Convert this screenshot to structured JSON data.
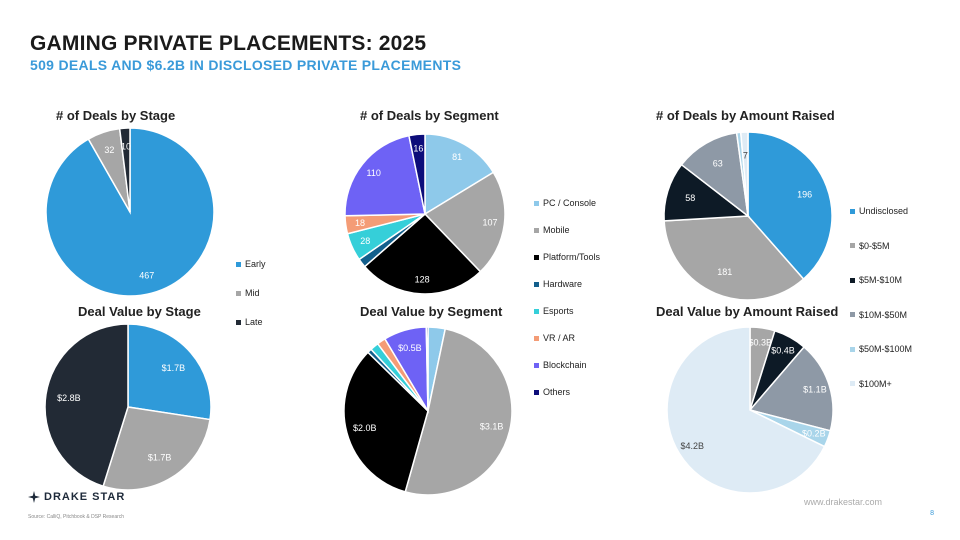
{
  "header": {
    "title": "GAMING PRIVATE PLACEMENTS: 2025",
    "subtitle": "509 DEALS AND $6.2B IN DISCLOSED PRIVATE PLACEMENTS"
  },
  "legends": {
    "stage": [
      {
        "label": "Early",
        "color": "#2f9ad9"
      },
      {
        "label": "Mid",
        "color": "#a6a6a6"
      },
      {
        "label": "Late",
        "color": "#222a35"
      }
    ],
    "segment": [
      {
        "label": "PC / Console",
        "color": "#8ec9ea"
      },
      {
        "label": "Mobile",
        "color": "#a6a6a6"
      },
      {
        "label": "Platform/Tools",
        "color": "#000000"
      },
      {
        "label": "Hardware",
        "color": "#135f8c"
      },
      {
        "label": "Esports",
        "color": "#35cfd9"
      },
      {
        "label": "VR / AR",
        "color": "#f49c76"
      },
      {
        "label": "Blockchain",
        "color": "#6e62f5"
      },
      {
        "label": "Others",
        "color": "#0d0d7a"
      }
    ],
    "amount": [
      {
        "label": "Undisclosed",
        "color": "#2f9ad9"
      },
      {
        "label": "$0-$5M",
        "color": "#a6a6a6"
      },
      {
        "label": "$5M-$10M",
        "color": "#0d1a26"
      },
      {
        "label": "$10M-$50M",
        "color": "#8e99a6"
      },
      {
        "label": "$50M-$100M",
        "color": "#a9d5ea"
      },
      {
        "label": "$100M+",
        "color": "#deebf5"
      }
    ]
  },
  "chart_data": [
    {
      "type": "pie",
      "title": "# of Deals by Stage",
      "slices": [
        {
          "label": "Early",
          "value": 467,
          "display": "467",
          "color": "#2f9ad9"
        },
        {
          "label": "Mid",
          "value": 32,
          "display": "32",
          "color": "#a6a6a6"
        },
        {
          "label": "Late",
          "value": 10,
          "display": "10",
          "color": "#222a35"
        }
      ]
    },
    {
      "type": "pie",
      "title": "# of Deals by Segment",
      "slices": [
        {
          "label": "PC / Console",
          "value": 81,
          "display": "81",
          "color": "#8ec9ea"
        },
        {
          "label": "Mobile",
          "value": 107,
          "display": "107",
          "color": "#a6a6a6"
        },
        {
          "label": "Platform/Tools",
          "value": 128,
          "display": "128",
          "color": "#000000"
        },
        {
          "label": "Hardware",
          "value": 9,
          "display": "",
          "color": "#135f8c"
        },
        {
          "label": "Esports",
          "value": 28,
          "display": "28",
          "color": "#35cfd9"
        },
        {
          "label": "VR / AR",
          "value": 18,
          "display": "18",
          "color": "#f49c76"
        },
        {
          "label": "Blockchain",
          "value": 110,
          "display": "110",
          "color": "#6e62f5"
        },
        {
          "label": "Others",
          "value": 16,
          "display": "16",
          "color": "#0d0d7a"
        }
      ]
    },
    {
      "type": "pie",
      "title": "# of Deals by Amount Raised",
      "slices": [
        {
          "label": "Undisclosed",
          "value": 196,
          "display": "196",
          "color": "#2f9ad9"
        },
        {
          "label": "$0-$5M",
          "value": 181,
          "display": "181",
          "color": "#a6a6a6"
        },
        {
          "label": "$5M-$10M",
          "value": 58,
          "display": "58",
          "color": "#0d1a26"
        },
        {
          "label": "$10M-$50M",
          "value": 63,
          "display": "63",
          "color": "#8e99a6"
        },
        {
          "label": "$50M-$100M",
          "value": 4,
          "display": "",
          "color": "#a9d5ea"
        },
        {
          "label": "$100M+",
          "value": 7,
          "display": "7",
          "color": "#deebf5"
        }
      ]
    },
    {
      "type": "pie",
      "title": "Deal Value by Stage",
      "slices": [
        {
          "label": "Early",
          "value": 1.7,
          "display": "$1.7B",
          "color": "#2f9ad9"
        },
        {
          "label": "Mid",
          "value": 1.7,
          "display": "$1.7B",
          "color": "#a6a6a6"
        },
        {
          "label": "Late",
          "value": 2.8,
          "display": "$2.8B",
          "color": "#222a35"
        }
      ]
    },
    {
      "type": "pie",
      "title": "Deal Value by Segment",
      "slices": [
        {
          "label": "PC / Console",
          "value": 0.2,
          "display": "",
          "color": "#8ec9ea"
        },
        {
          "label": "Mobile",
          "value": 3.1,
          "display": "$3.1B",
          "color": "#a6a6a6"
        },
        {
          "label": "Platform/Tools",
          "value": 2.0,
          "display": "$2.0B",
          "color": "#000000"
        },
        {
          "label": "Hardware",
          "value": 0.05,
          "display": "",
          "color": "#135f8c"
        },
        {
          "label": "Esports",
          "value": 0.1,
          "display": "",
          "color": "#35cfd9"
        },
        {
          "label": "VR / AR",
          "value": 0.1,
          "display": "",
          "color": "#f49c76"
        },
        {
          "label": "Blockchain",
          "value": 0.5,
          "display": "$0.5B",
          "color": "#6e62f5"
        },
        {
          "label": "Others",
          "value": 0.02,
          "display": "",
          "color": "#0d0d7a"
        }
      ]
    },
    {
      "type": "pie",
      "title": "Deal Value by Amount Raised",
      "slices": [
        {
          "label": "$0-$5M",
          "value": 0.3,
          "display": "$0.3B",
          "color": "#a6a6a6"
        },
        {
          "label": "$5M-$10M",
          "value": 0.4,
          "display": "$0.4B",
          "color": "#0d1a26"
        },
        {
          "label": "$10M-$50M",
          "value": 1.1,
          "display": "$1.1B",
          "color": "#8e99a6"
        },
        {
          "label": "$50M-$100M",
          "value": 0.2,
          "display": "$0.2B",
          "color": "#a9d5ea"
        },
        {
          "label": "$100M+",
          "value": 4.2,
          "display": "$4.2B",
          "color": "#deebf5"
        }
      ]
    }
  ],
  "footer": {
    "logo": "DRAKE STAR",
    "source": "Source: CalliQ, Pitchbook & DSP Research",
    "website": "www.drakestar.com",
    "page": "8"
  }
}
